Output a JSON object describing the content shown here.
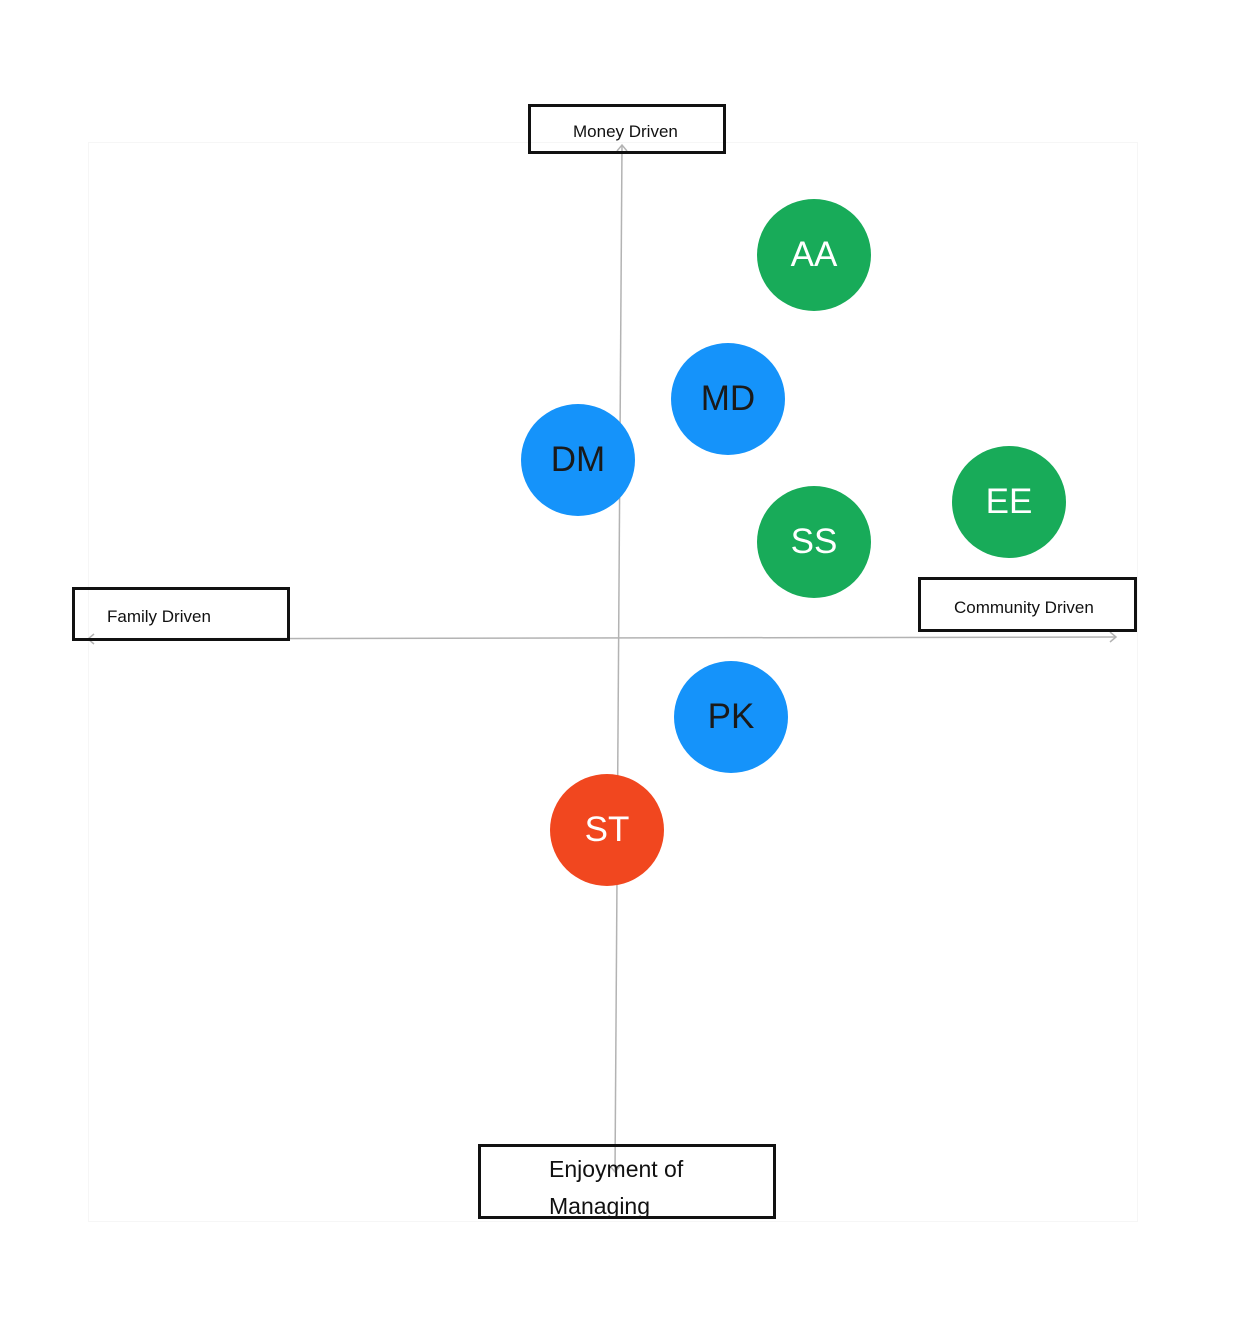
{
  "axes": {
    "top_label": "Money Driven",
    "left_label": "Family Driven",
    "right_label": "Community Driven",
    "bottom_label": "Enjoyment of Managing"
  },
  "colors": {
    "green": "#18ab59",
    "blue": "#1593fa",
    "red": "#f1471f",
    "axis_line": "#b3b3b3"
  },
  "bubbles": [
    {
      "id": "aa",
      "label": "AA",
      "color": "#18ab59",
      "text_color": "#ffffff"
    },
    {
      "id": "md",
      "label": "MD",
      "color": "#1593fa",
      "text_color": "#1a1a1a"
    },
    {
      "id": "dm",
      "label": "DM",
      "color": "#1593fa",
      "text_color": "#1a1a1a"
    },
    {
      "id": "ee",
      "label": "EE",
      "color": "#18ab59",
      "text_color": "#ffffff"
    },
    {
      "id": "ss",
      "label": "SS",
      "color": "#18ab59",
      "text_color": "#ffffff"
    },
    {
      "id": "pk",
      "label": "PK",
      "color": "#1593fa",
      "text_color": "#1a1a1a"
    },
    {
      "id": "st",
      "label": "ST",
      "color": "#f1471f",
      "text_color": "#ffffff"
    }
  ]
}
